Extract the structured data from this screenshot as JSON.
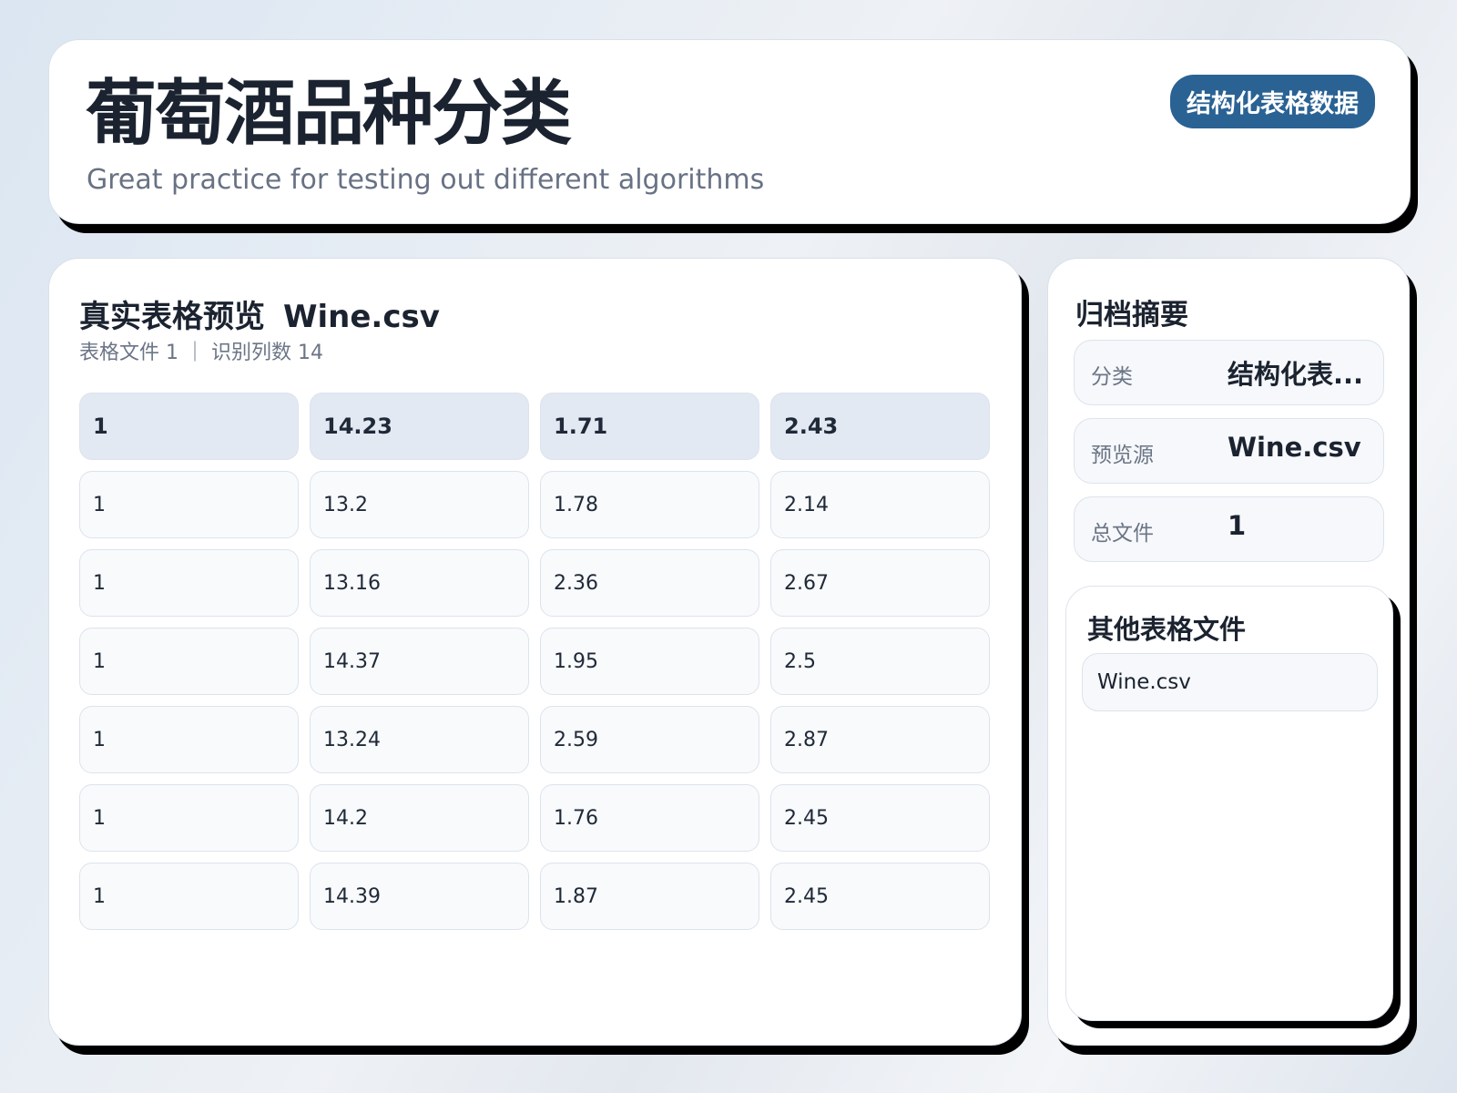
{
  "header": {
    "title": "葡萄酒品种分类",
    "subtitle": "Great practice for testing out different algorithms",
    "badge": "结构化表格数据"
  },
  "preview": {
    "title": "真实表格预览",
    "filename": "Wine.csv",
    "meta": "表格文件 1 ｜ 识别列数 14",
    "rows": [
      [
        "1",
        "14.23",
        "1.71",
        "2.43"
      ],
      [
        "1",
        "13.2",
        "1.78",
        "2.14"
      ],
      [
        "1",
        "13.16",
        "2.36",
        "2.67"
      ],
      [
        "1",
        "14.37",
        "1.95",
        "2.5"
      ],
      [
        "1",
        "13.24",
        "2.59",
        "2.87"
      ],
      [
        "1",
        "14.2",
        "1.76",
        "2.45"
      ],
      [
        "1",
        "14.39",
        "1.87",
        "2.45"
      ]
    ]
  },
  "summary": {
    "title": "归档摘要",
    "items": [
      {
        "label": "分类",
        "value": "结构化表..."
      },
      {
        "label": "预览源",
        "value": "Wine.csv"
      },
      {
        "label": "总文件",
        "value": "1"
      }
    ]
  },
  "others": {
    "title": "其他表格文件",
    "files": [
      "Wine.csv"
    ]
  },
  "colors": {
    "badge": "#2a6294",
    "header_row": "#e2e9f3",
    "shadow": "#000000"
  }
}
